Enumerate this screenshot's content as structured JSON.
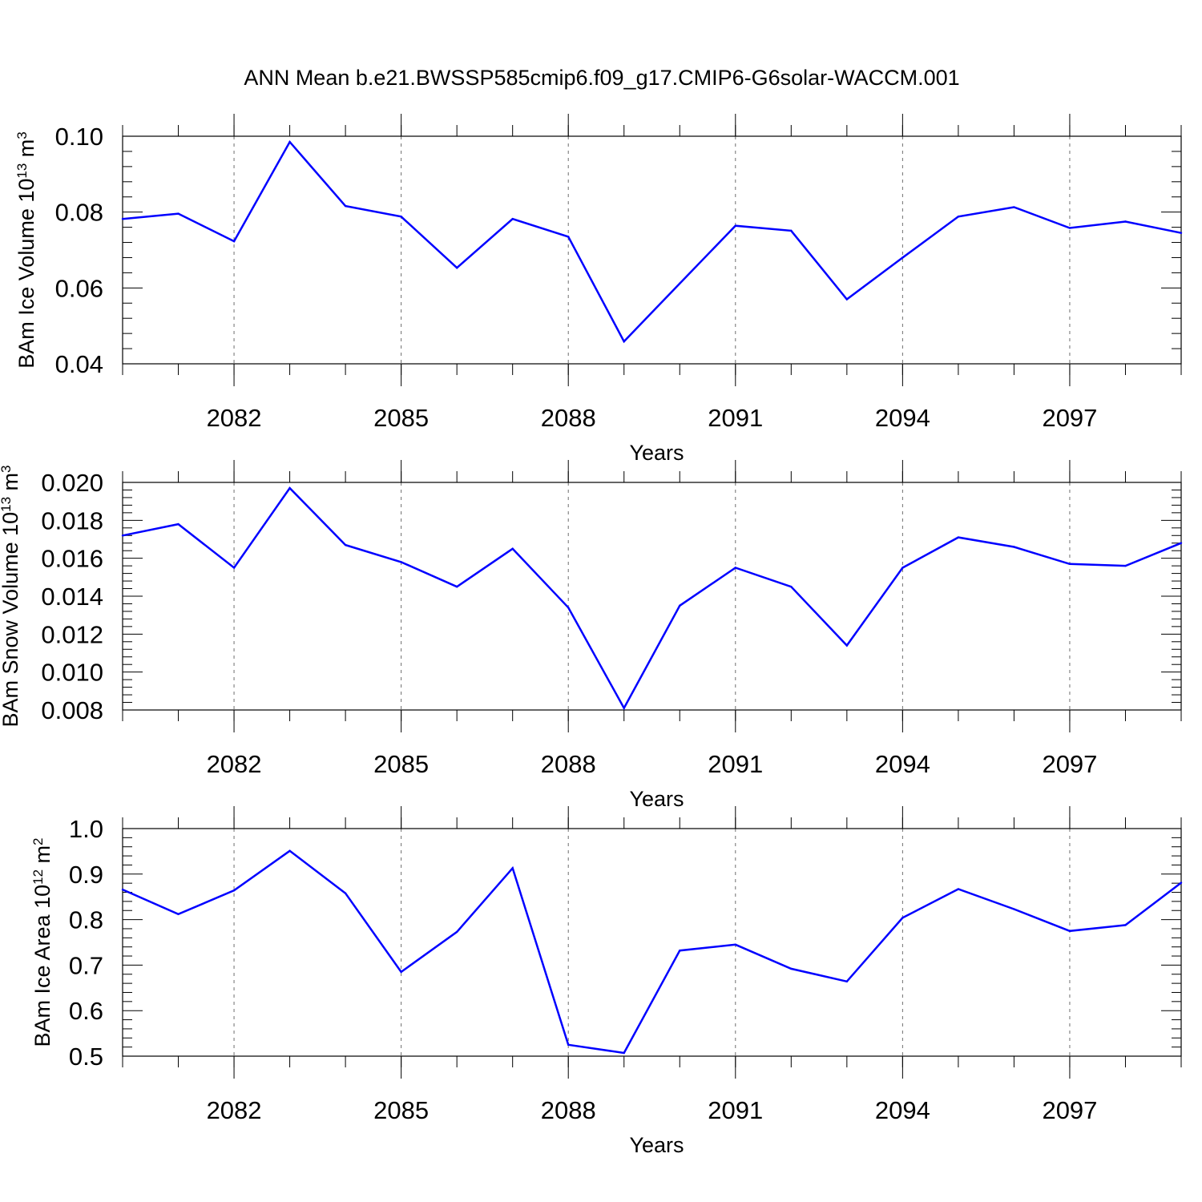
{
  "title": "ANN Mean b.e21.BWSSP585cmip6.f09_g17.CMIP6-G6solar-WACCM.001",
  "line_color": "#0000ff",
  "chart_data": [
    {
      "type": "line",
      "xlabel": "Years",
      "ylabel": {
        "text": "BAm Ice Volume 10",
        "exp": "13",
        "unit": " m",
        "unit_exp": "3"
      },
      "xlim": [
        2080,
        2099
      ],
      "ylim": [
        0.04,
        0.1
      ],
      "yticks": [
        "0.04",
        "0.06",
        "0.08",
        "0.10"
      ],
      "ytick_values": [
        0.04,
        0.06,
        0.08,
        0.1
      ],
      "xticks": [
        "2082",
        "2085",
        "2088",
        "2091",
        "2094",
        "2097"
      ],
      "xtick_values": [
        2082,
        2085,
        2088,
        2091,
        2094,
        2097
      ],
      "grid": "vertical dashed at major x ticks",
      "x": [
        2080,
        2081,
        2082,
        2083,
        2084,
        2085,
        2086,
        2087,
        2088,
        2089,
        2090,
        2091,
        2092,
        2093,
        2094,
        2095,
        2096,
        2097,
        2098,
        2099
      ],
      "y": [
        0.0782,
        0.0796,
        0.0723,
        0.0985,
        0.0816,
        0.0788,
        0.0653,
        0.0782,
        0.0735,
        0.0459,
        0.0612,
        0.0764,
        0.0751,
        0.057,
        0.068,
        0.0788,
        0.0813,
        0.0758,
        0.0775,
        0.0745
      ]
    },
    {
      "type": "line",
      "xlabel": "Years",
      "ylabel": {
        "text": "BAm Snow Volume 10",
        "exp": "13",
        "unit": " m",
        "unit_exp": "3"
      },
      "xlim": [
        2080,
        2099
      ],
      "ylim": [
        0.008,
        0.02
      ],
      "yticks": [
        "0.008",
        "0.010",
        "0.012",
        "0.014",
        "0.016",
        "0.018",
        "0.020"
      ],
      "ytick_values": [
        0.008,
        0.01,
        0.012,
        0.014,
        0.016,
        0.018,
        0.02
      ],
      "xticks": [
        "2082",
        "2085",
        "2088",
        "2091",
        "2094",
        "2097"
      ],
      "xtick_values": [
        2082,
        2085,
        2088,
        2091,
        2094,
        2097
      ],
      "grid": "vertical dashed at major x ticks",
      "x": [
        2080,
        2081,
        2082,
        2083,
        2084,
        2085,
        2086,
        2087,
        2088,
        2089,
        2090,
        2091,
        2092,
        2093,
        2094,
        2095,
        2096,
        2097,
        2098,
        2099
      ],
      "y": [
        0.0172,
        0.0178,
        0.0155,
        0.0197,
        0.0167,
        0.0158,
        0.0145,
        0.0165,
        0.0134,
        0.0081,
        0.0135,
        0.0155,
        0.0145,
        0.0114,
        0.0155,
        0.0171,
        0.0166,
        0.0157,
        0.0156,
        0.0168
      ]
    },
    {
      "type": "line",
      "xlabel": "Years",
      "ylabel": {
        "text": "BAm Ice Area 10",
        "exp": "12",
        "unit": " m",
        "unit_exp": "2"
      },
      "xlim": [
        2080,
        2099
      ],
      "ylim": [
        0.5,
        1.0
      ],
      "yticks": [
        "0.5",
        "0.6",
        "0.7",
        "0.8",
        "0.9",
        "1.0"
      ],
      "ytick_values": [
        0.5,
        0.6,
        0.7,
        0.8,
        0.9,
        1.0
      ],
      "xticks": [
        "2082",
        "2085",
        "2088",
        "2091",
        "2094",
        "2097"
      ],
      "xtick_values": [
        2082,
        2085,
        2088,
        2091,
        2094,
        2097
      ],
      "grid": "vertical dashed at major x ticks",
      "x": [
        2080,
        2081,
        2082,
        2083,
        2084,
        2085,
        2086,
        2087,
        2088,
        2089,
        2090,
        2091,
        2092,
        2093,
        2094,
        2095,
        2096,
        2097,
        2098,
        2099
      ],
      "y": [
        0.866,
        0.812,
        0.864,
        0.951,
        0.858,
        0.685,
        0.773,
        0.913,
        0.525,
        0.507,
        0.732,
        0.745,
        0.692,
        0.664,
        0.804,
        0.867,
        0.823,
        0.775,
        0.788,
        0.881
      ]
    }
  ]
}
